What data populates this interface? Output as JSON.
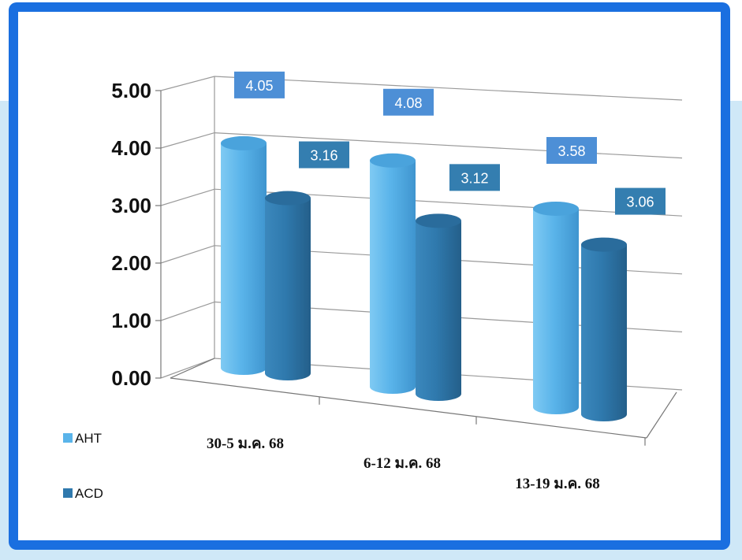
{
  "chart_data": {
    "type": "bar",
    "subtype": "3d-cylinder",
    "categories": [
      "30-5  ม.ค. 68",
      "6-12  ม.ค. 68",
      "13-19  ม.ค. 68"
    ],
    "series": [
      {
        "name": "AHT",
        "values": [
          4.05,
          4.08,
          3.58
        ],
        "color": "#5ab4ea"
      },
      {
        "name": "ACD",
        "values": [
          3.16,
          3.12,
          3.06
        ],
        "color": "#2f79ad"
      }
    ],
    "y_ticks": [
      "0.00",
      "1.00",
      "2.00",
      "3.00",
      "4.00",
      "5.00"
    ],
    "ylim": [
      0,
      5
    ],
    "grid": true,
    "legend_position": "bottom-left",
    "data_label_colors": {
      "AHT": "#4d8fd6",
      "ACD": "#347eb0"
    }
  },
  "colors": {
    "frame_border": "#1a6fe0",
    "background_band": "#cfe8f7"
  }
}
